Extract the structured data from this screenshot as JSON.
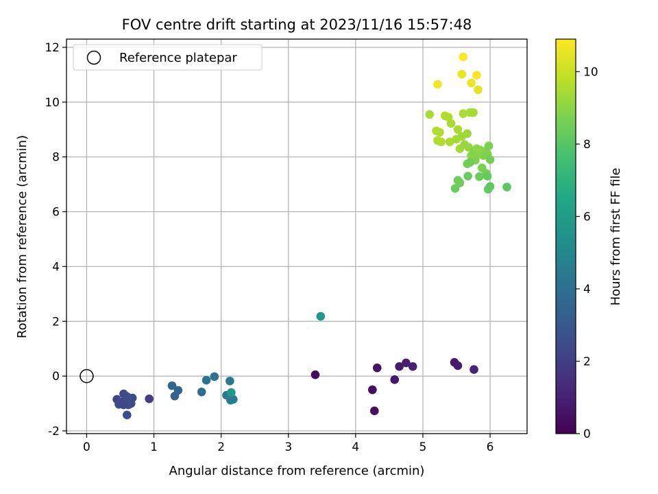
{
  "chart_data": {
    "type": "scatter",
    "title": "FOV centre drift starting at 2023/11/16 15:57:48",
    "xlabel": "Angular distance from reference (arcmin)",
    "ylabel": "Rotation from reference (arcmin)",
    "xlim": [
      -0.3,
      6.55
    ],
    "ylim": [
      -2.1,
      12.3
    ],
    "xticks": [
      0,
      1,
      2,
      3,
      4,
      5,
      6
    ],
    "yticks": [
      -2,
      0,
      2,
      4,
      6,
      8,
      10,
      12
    ],
    "grid": true,
    "legend": {
      "placement": "top-left",
      "label": "Reference platepar"
    },
    "reference_point": {
      "x": 0,
      "y": 0
    },
    "colorbar": {
      "label": "Hours from first FF file",
      "range": [
        0,
        10.9
      ],
      "ticks": [
        0,
        2,
        4,
        6,
        8,
        10
      ],
      "colormap": "viridis"
    },
    "points": [
      {
        "x": 3.4,
        "y": 0.05,
        "h": 0.3
      },
      {
        "x": 4.25,
        "y": -0.5,
        "h": 0.4
      },
      {
        "x": 4.28,
        "y": -1.27,
        "h": 0.5
      },
      {
        "x": 4.32,
        "y": 0.3,
        "h": 0.6
      },
      {
        "x": 4.58,
        "y": -0.13,
        "h": 0.7
      },
      {
        "x": 4.65,
        "y": 0.35,
        "h": 0.8
      },
      {
        "x": 4.75,
        "y": 0.48,
        "h": 0.9
      },
      {
        "x": 4.85,
        "y": 0.35,
        "h": 1.0
      },
      {
        "x": 5.47,
        "y": 0.5,
        "h": 0.7
      },
      {
        "x": 5.52,
        "y": 0.38,
        "h": 0.8
      },
      {
        "x": 5.76,
        "y": 0.24,
        "h": 1.1
      },
      {
        "x": 0.93,
        "y": -0.83,
        "h": 1.9
      },
      {
        "x": 0.45,
        "y": -0.85,
        "h": 2.2
      },
      {
        "x": 0.52,
        "y": -0.95,
        "h": 2.4
      },
      {
        "x": 0.55,
        "y": -0.65,
        "h": 2.4
      },
      {
        "x": 0.6,
        "y": -0.75,
        "h": 2.5
      },
      {
        "x": 0.62,
        "y": -1.05,
        "h": 2.5
      },
      {
        "x": 0.48,
        "y": -1.03,
        "h": 2.4
      },
      {
        "x": 0.58,
        "y": -0.85,
        "h": 2.5
      },
      {
        "x": 0.68,
        "y": -0.8,
        "h": 2.5
      },
      {
        "x": 0.66,
        "y": -1.0,
        "h": 2.5
      },
      {
        "x": 0.6,
        "y": -1.42,
        "h": 2.6
      },
      {
        "x": 0.55,
        "y": -1.05,
        "h": 2.3
      },
      {
        "x": 1.27,
        "y": -0.35,
        "h": 3.6
      },
      {
        "x": 1.31,
        "y": -0.73,
        "h": 3.4
      },
      {
        "x": 1.36,
        "y": -0.52,
        "h": 3.5
      },
      {
        "x": 1.71,
        "y": -0.58,
        "h": 3.9
      },
      {
        "x": 1.78,
        "y": -0.15,
        "h": 4.1
      },
      {
        "x": 1.9,
        "y": -0.02,
        "h": 4.2
      },
      {
        "x": 2.08,
        "y": -0.7,
        "h": 4.3
      },
      {
        "x": 2.13,
        "y": -0.18,
        "h": 4.4
      },
      {
        "x": 2.14,
        "y": -0.88,
        "h": 4.6
      },
      {
        "x": 2.18,
        "y": -0.85,
        "h": 4.5
      },
      {
        "x": 2.15,
        "y": -0.6,
        "h": 5.8
      },
      {
        "x": 3.48,
        "y": 2.18,
        "h": 5.7
      },
      {
        "x": 5.1,
        "y": 9.55,
        "h": 9.5
      },
      {
        "x": 5.2,
        "y": 8.95,
        "h": 9.6
      },
      {
        "x": 5.22,
        "y": 8.6,
        "h": 9.6
      },
      {
        "x": 5.25,
        "y": 8.9,
        "h": 9.6
      },
      {
        "x": 5.27,
        "y": 8.55,
        "h": 9.6
      },
      {
        "x": 5.33,
        "y": 9.5,
        "h": 9.6
      },
      {
        "x": 5.38,
        "y": 9.45,
        "h": 9.6
      },
      {
        "x": 5.4,
        "y": 8.55,
        "h": 9.5
      },
      {
        "x": 5.42,
        "y": 9.22,
        "h": 9.5
      },
      {
        "x": 5.5,
        "y": 8.65,
        "h": 9.4
      },
      {
        "x": 5.52,
        "y": 9.0,
        "h": 9.5
      },
      {
        "x": 5.55,
        "y": 8.3,
        "h": 9.4
      },
      {
        "x": 5.58,
        "y": 8.75,
        "h": 9.3
      },
      {
        "x": 5.6,
        "y": 9.58,
        "h": 9.5
      },
      {
        "x": 5.62,
        "y": 8.45,
        "h": 9.2
      },
      {
        "x": 5.66,
        "y": 8.85,
        "h": 9.3
      },
      {
        "x": 5.68,
        "y": 8.35,
        "h": 9.2
      },
      {
        "x": 5.7,
        "y": 9.62,
        "h": 9.5
      },
      {
        "x": 5.72,
        "y": 8.05,
        "h": 9.0
      },
      {
        "x": 5.75,
        "y": 9.62,
        "h": 9.4
      },
      {
        "x": 5.76,
        "y": 8.2,
        "h": 8.8
      },
      {
        "x": 5.78,
        "y": 7.88,
        "h": 8.8
      },
      {
        "x": 5.8,
        "y": 8.3,
        "h": 9.1
      },
      {
        "x": 5.82,
        "y": 8.1,
        "h": 8.9
      },
      {
        "x": 5.85,
        "y": 8.25,
        "h": 9.0
      },
      {
        "x": 5.88,
        "y": 7.6,
        "h": 8.7
      },
      {
        "x": 5.9,
        "y": 8.05,
        "h": 8.8
      },
      {
        "x": 5.92,
        "y": 8.2,
        "h": 8.9
      },
      {
        "x": 5.94,
        "y": 7.4,
        "h": 8.6
      },
      {
        "x": 5.96,
        "y": 8.1,
        "h": 8.8
      },
      {
        "x": 5.98,
        "y": 8.4,
        "h": 8.7
      },
      {
        "x": 6.0,
        "y": 7.9,
        "h": 8.6
      },
      {
        "x": 5.66,
        "y": 7.75,
        "h": 8.6
      },
      {
        "x": 5.7,
        "y": 7.8,
        "h": 8.5
      },
      {
        "x": 5.48,
        "y": 6.85,
        "h": 8.4
      },
      {
        "x": 5.52,
        "y": 7.15,
        "h": 8.5
      },
      {
        "x": 5.55,
        "y": 7.05,
        "h": 8.5
      },
      {
        "x": 5.67,
        "y": 7.3,
        "h": 8.4
      },
      {
        "x": 5.84,
        "y": 7.28,
        "h": 8.4
      },
      {
        "x": 5.96,
        "y": 7.3,
        "h": 8.3
      },
      {
        "x": 5.97,
        "y": 6.82,
        "h": 8.3
      },
      {
        "x": 6.0,
        "y": 6.92,
        "h": 8.2
      },
      {
        "x": 6.25,
        "y": 6.9,
        "h": 8.1
      },
      {
        "x": 5.22,
        "y": 10.65,
        "h": 10.7
      },
      {
        "x": 5.58,
        "y": 11.02,
        "h": 10.6
      },
      {
        "x": 5.6,
        "y": 11.65,
        "h": 10.9
      },
      {
        "x": 5.72,
        "y": 10.7,
        "h": 10.6
      },
      {
        "x": 5.8,
        "y": 10.98,
        "h": 10.8
      },
      {
        "x": 5.82,
        "y": 10.45,
        "h": 10.5
      }
    ]
  }
}
